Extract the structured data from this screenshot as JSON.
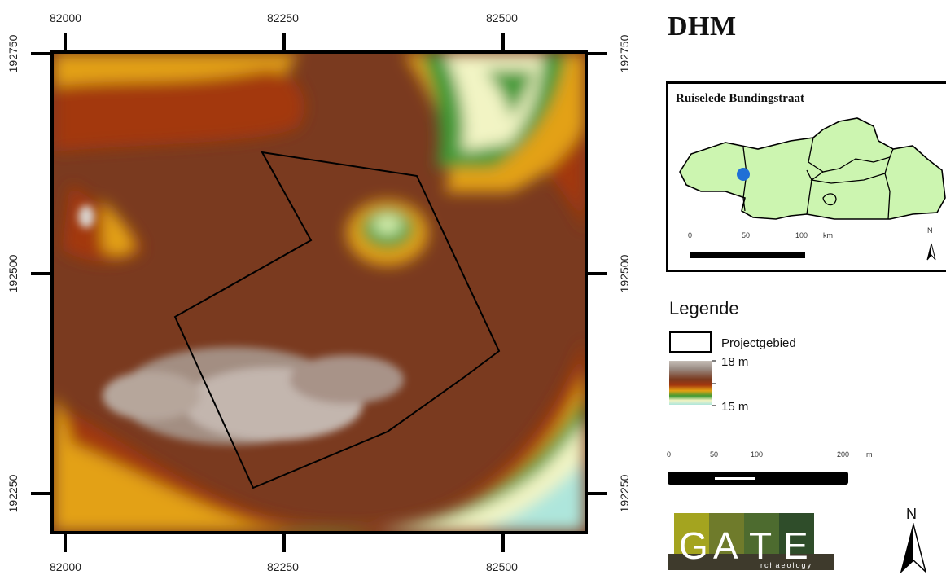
{
  "map": {
    "title": "DHM",
    "x_ticks_top": [
      "82000",
      "82250",
      "82500"
    ],
    "x_ticks_bottom": [
      "82000",
      "82250",
      "82500"
    ],
    "y_ticks_left": [
      "192750",
      "192500",
      "192250"
    ],
    "y_ticks_right": [
      "192750",
      "192500",
      "192250"
    ]
  },
  "inset": {
    "title": "Ruiselede Bundingstraat",
    "scale_labels": [
      "0",
      "50",
      "100",
      "km"
    ],
    "north_label": "N",
    "region_fill": "#ccf5b0",
    "location_marker_color": "#1f6fd6"
  },
  "legend": {
    "title": "Legende",
    "project_area_label": "Projectgebied",
    "elevation_max_label": "18 m",
    "elevation_min_label": "15 m",
    "ramp_colors": [
      "#b8b0a8",
      "#7a3a1f",
      "#a53a10",
      "#e7a414",
      "#3f9a35",
      "#f4f6c8",
      "#aee6dc"
    ]
  },
  "scale_bar": {
    "labels": [
      "0",
      "50",
      "100",
      "200",
      "m"
    ]
  },
  "logo": {
    "letters": [
      "G",
      "A",
      "T",
      "E"
    ],
    "subtitle": "rchaeology",
    "colors": [
      "#a4a41f",
      "#6f7b2b",
      "#4d6b2f",
      "#2f4d2a"
    ]
  },
  "north_arrow": {
    "label": "N"
  }
}
